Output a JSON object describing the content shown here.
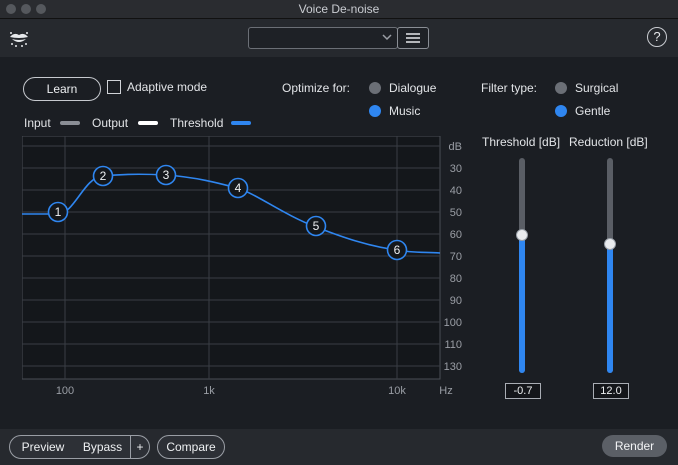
{
  "window": {
    "title": "Voice De-noise"
  },
  "toolbar": {
    "preset_value": ""
  },
  "controls": {
    "learn_label": "Learn",
    "adaptive_label": "Adaptive mode",
    "adaptive_checked": false,
    "optimize_label": "Optimize for:",
    "optimize_options": [
      "Dialogue",
      "Music"
    ],
    "optimize_selected": "Music",
    "filter_label": "Filter type:",
    "filter_options": [
      "Surgical",
      "Gentle"
    ],
    "filter_selected": "Gentle"
  },
  "legend": {
    "input": "Input",
    "output": "Output",
    "threshold": "Threshold"
  },
  "graph": {
    "db_ticks": [
      "dB",
      "30",
      "40",
      "50",
      "60",
      "70",
      "80",
      "90",
      "100",
      "110",
      "130"
    ],
    "freq_ticks": [
      "100",
      "1k",
      "10k",
      "Hz"
    ],
    "nodes": [
      "1",
      "2",
      "3",
      "4",
      "5",
      "6"
    ]
  },
  "sliders": {
    "threshold_label": "Threshold [dB]",
    "threshold_value": "-0.7",
    "reduction_label": "Reduction [dB]",
    "reduction_value": "12.0"
  },
  "bottom": {
    "preview": "Preview",
    "bypass": "Bypass",
    "plus": "+",
    "compare": "Compare",
    "render": "Render"
  },
  "colors": {
    "accent": "#2f86f0",
    "background": "#1b1e23"
  }
}
